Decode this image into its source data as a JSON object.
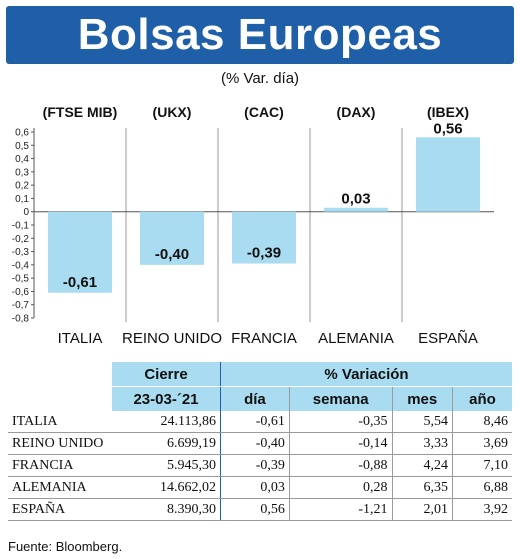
{
  "header": {
    "title": "Bolsas Europeas",
    "subtitle": "(% Var. día)"
  },
  "colors": {
    "banner": "#1f5fa8",
    "bar": "#a9dcf0",
    "table_header": "#a9dcf0"
  },
  "chart_data": {
    "type": "bar",
    "categories": [
      "ITALIA",
      "REINO UNIDO",
      "FRANCIA",
      "ALEMANIA",
      "ESPAÑA"
    ],
    "index_codes": [
      "(FTSE MIB)",
      "(UKX)",
      "(CAC)",
      "(DAX)",
      "(IBEX)"
    ],
    "values": [
      -0.61,
      -0.4,
      -0.39,
      0.03,
      0.56
    ],
    "value_labels": [
      "-0,61",
      "-0,40",
      "-0,39",
      "0,03",
      "0,56"
    ],
    "ylim": [
      -0.8,
      0.6
    ],
    "yticks": [
      "0,6",
      "0,5",
      "0,4",
      "0,3",
      "0,2",
      "0,1",
      "0",
      "-0,1",
      "-0,2",
      "-0,3",
      "-0,4",
      "-0,5",
      "-0,6",
      "-0,7",
      "-0,8"
    ],
    "grid": "vertical"
  },
  "table": {
    "header_cierre": "Cierre",
    "header_variacion": "% Variación",
    "date": "23-03-´21",
    "subheaders": [
      "día",
      "semana",
      "mes",
      "año"
    ],
    "rows": [
      {
        "name": "ITALIA",
        "cierre": "24.113,86",
        "dia": "-0,61",
        "semana": "-0,35",
        "mes": "5,54",
        "ano": "8,46"
      },
      {
        "name": "REINO UNIDO",
        "cierre": "6.699,19",
        "dia": "-0,40",
        "semana": "-0,14",
        "mes": "3,33",
        "ano": "3,69"
      },
      {
        "name": "FRANCIA",
        "cierre": "5.945,30",
        "dia": "-0,39",
        "semana": "-0,88",
        "mes": "4,24",
        "ano": "7,10"
      },
      {
        "name": "ALEMANIA",
        "cierre": "14.662,02",
        "dia": "0,03",
        "semana": "0,28",
        "mes": "6,35",
        "ano": "6,88"
      },
      {
        "name": "ESPAÑA",
        "cierre": "8.390,30",
        "dia": "0,56",
        "semana": "-1,21",
        "mes": "2,01",
        "ano": "3,92"
      }
    ]
  },
  "footer": {
    "source": "Fuente: Bloomberg."
  }
}
